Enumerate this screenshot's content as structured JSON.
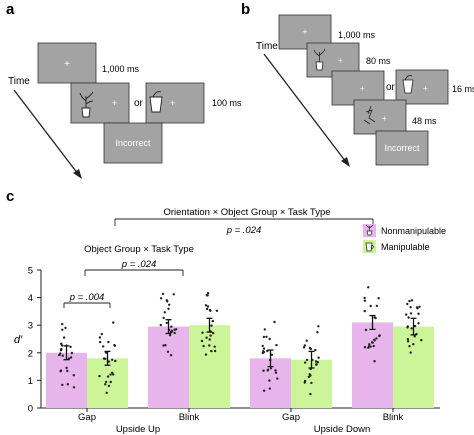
{
  "panel_a": {
    "letter": "a",
    "time_label": "Time",
    "stimulus_glyph": "+",
    "durations": {
      "fixation": "1,000 ms",
      "target": "100 ms"
    },
    "or_label": "or",
    "feedback": "Incorrect",
    "screen_color": "#a3a3a3"
  },
  "panel_b": {
    "letter": "b",
    "time_label": "Time",
    "stimulus_glyph": "+",
    "durations": {
      "fixation": "1,000 ms",
      "first": "80 ms",
      "target": "16 ms",
      "mask": "48 ms"
    },
    "or_label": "or",
    "feedback": "Incorrect",
    "screen_color": "#a3a3a3"
  },
  "panel_c": {
    "letter": "c",
    "annotations": {
      "three_way": "Orientation × Object Group × Task Type",
      "three_way_p": "p = .024",
      "two_way": "Object Group × Task Type",
      "two_way_p": "p = .024",
      "pair_p": "p = .004"
    },
    "legend": [
      {
        "label": "Nonmanipulable",
        "color": "#e8b4ec",
        "icon": "plant-icon"
      },
      {
        "label": "Manipulable",
        "color": "#ccf59a",
        "icon": "cup-icon"
      }
    ]
  },
  "chart_data": {
    "type": "bar",
    "ylabel": "d′",
    "ylim": [
      0,
      5
    ],
    "yticks": [
      "0",
      "1",
      "2",
      "3",
      "4",
      "5"
    ],
    "categories": [
      "Gap",
      "Blink",
      "Gap",
      "Blink"
    ],
    "groups": [
      "Upside Up",
      "Upside Down"
    ],
    "series": [
      {
        "name": "Nonmanipulable",
        "color": "#e8b4ec",
        "values": [
          2.0,
          2.95,
          1.8,
          3.1
        ],
        "errors": [
          0.25,
          0.25,
          0.3,
          0.25
        ]
      },
      {
        "name": "Manipulable",
        "color": "#ccf59a",
        "values": [
          1.8,
          3.0,
          1.75,
          2.95
        ],
        "errors": [
          0.25,
          0.25,
          0.3,
          0.3
        ]
      }
    ]
  }
}
